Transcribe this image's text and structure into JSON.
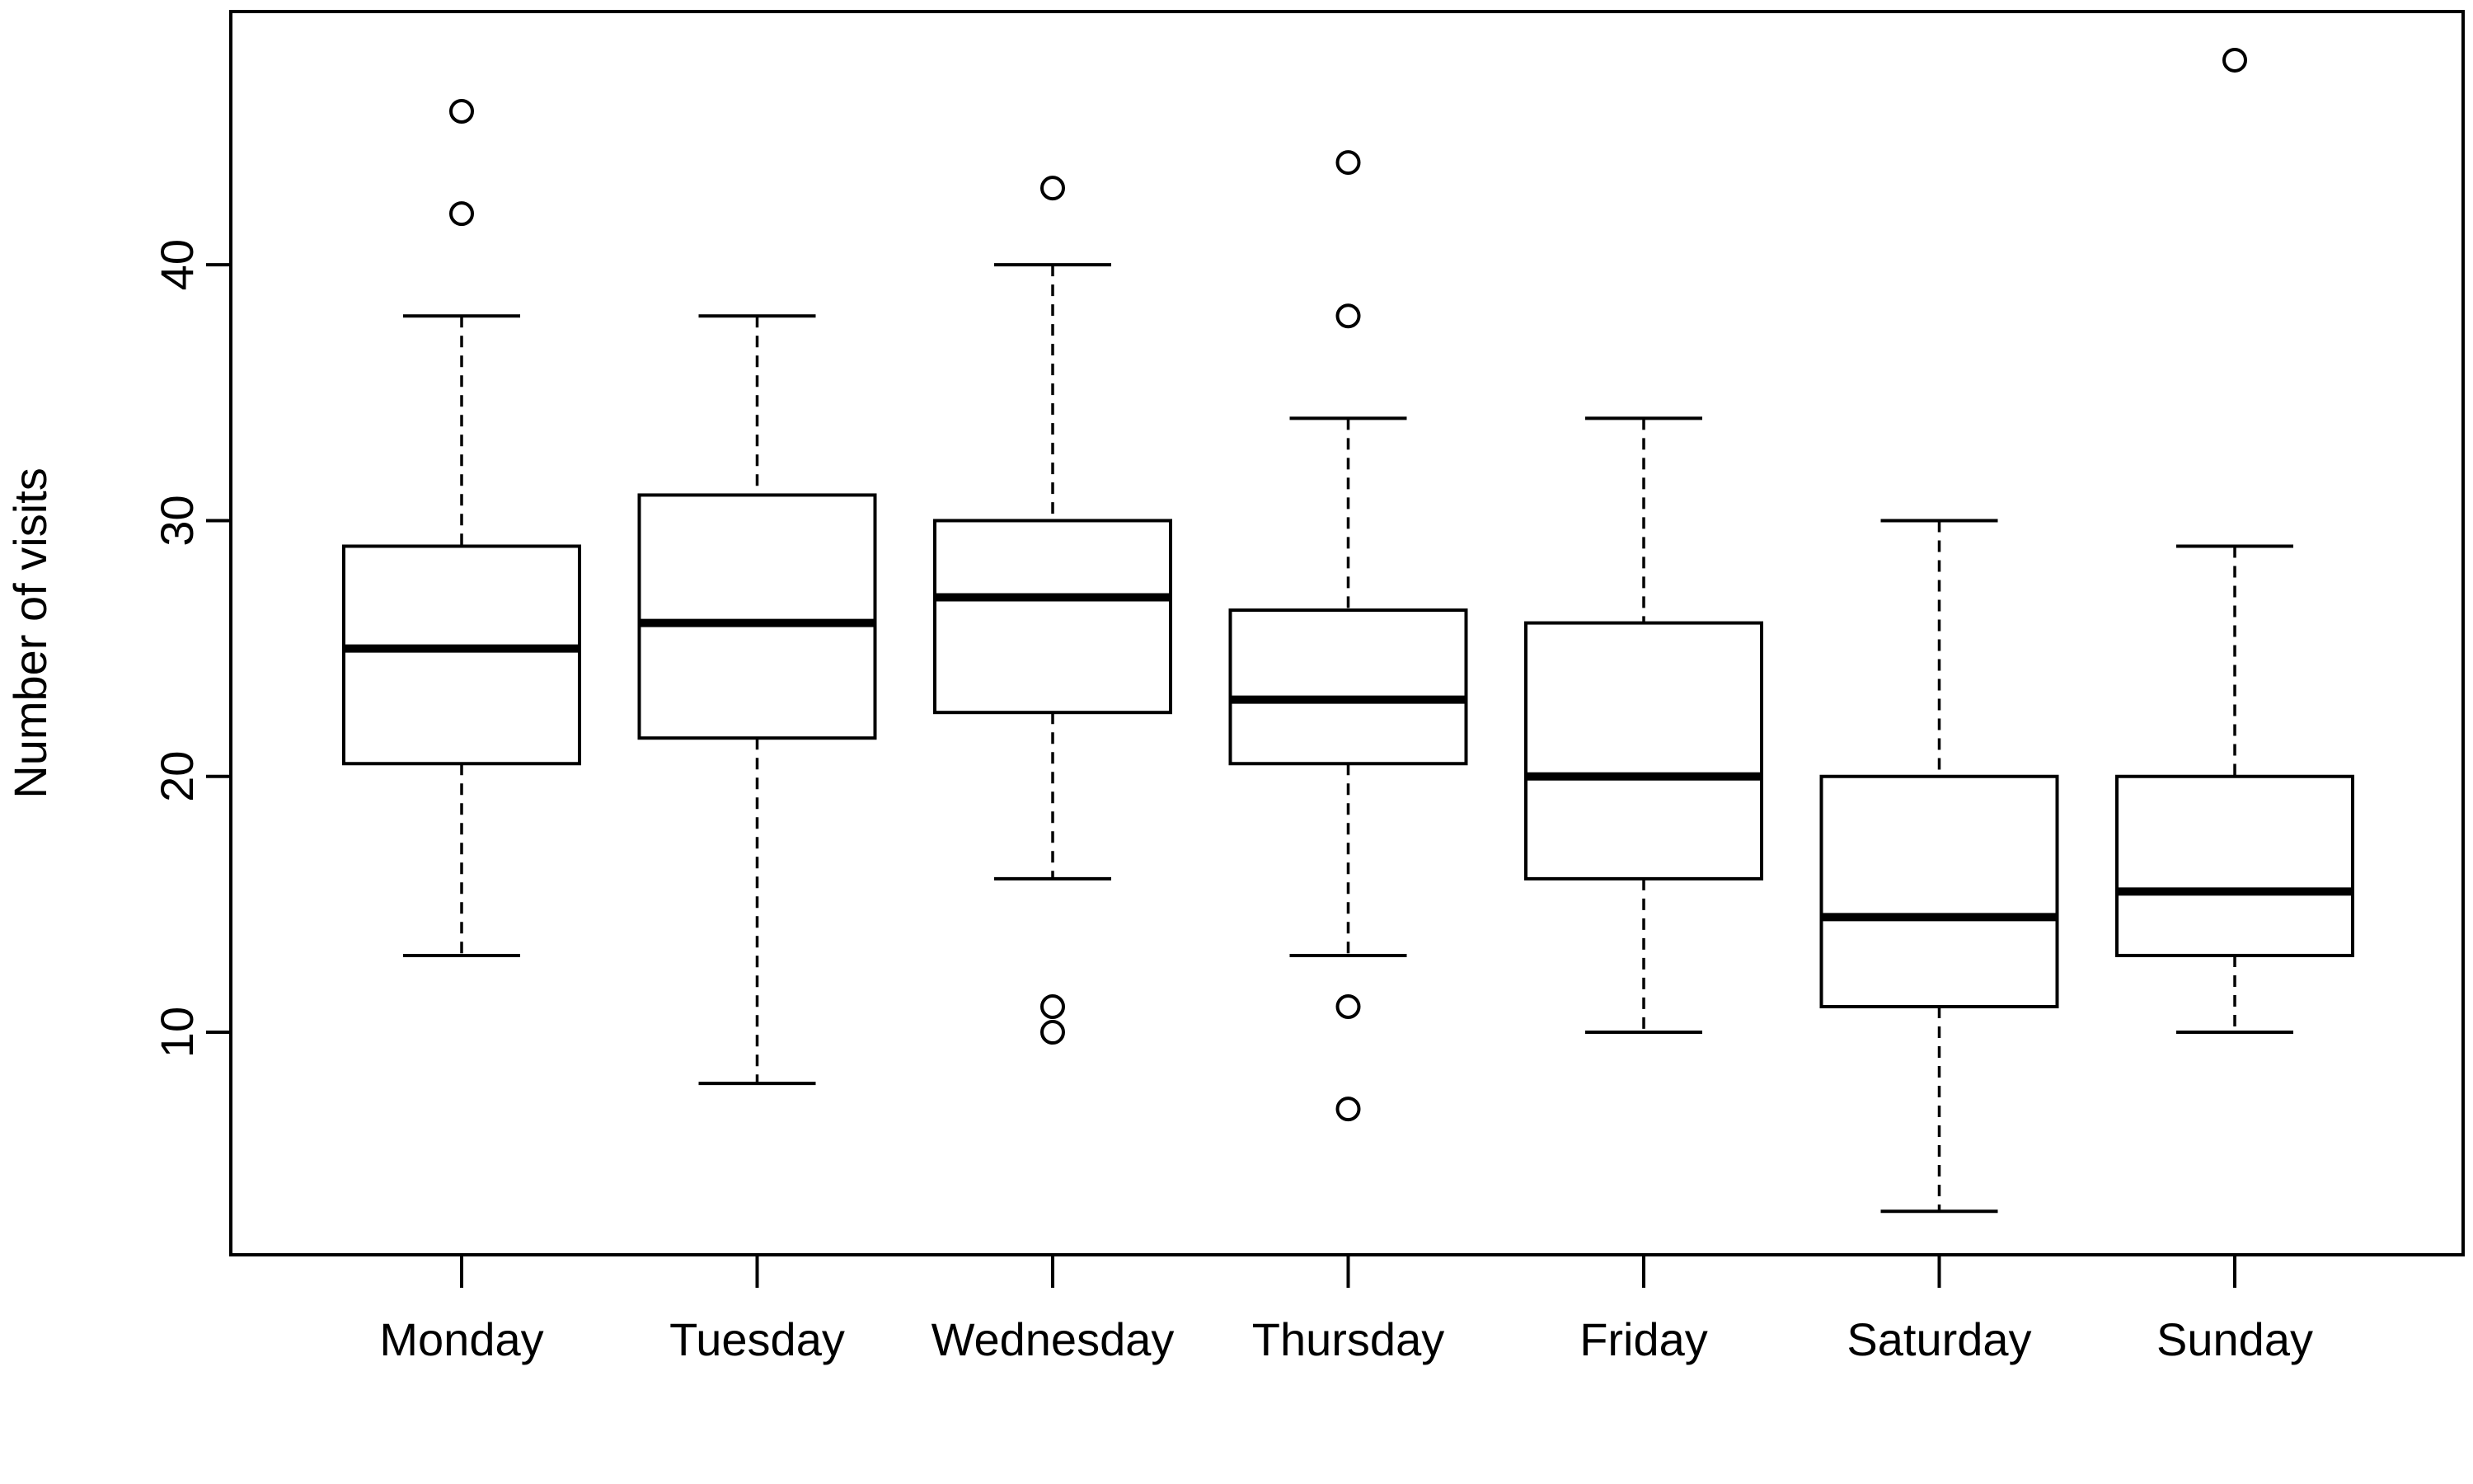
{
  "chart_data": {
    "type": "boxplot",
    "title": "",
    "xlabel": "",
    "ylabel": "Number of visits",
    "ylim": [
      1.3,
      49.9
    ],
    "yticks": [
      10,
      20,
      30,
      40
    ],
    "grid": false,
    "legend": "none",
    "colors": {
      "stroke": "#000000",
      "fill": "#ffffff"
    },
    "categories": [
      "Monday",
      "Tuesday",
      "Wednesday",
      "Thursday",
      "Friday",
      "Saturday",
      "Sunday"
    ],
    "boxes": [
      {
        "category": "Monday",
        "whisker_low": 13,
        "q1": 20.5,
        "median": 25,
        "q3": 29,
        "whisker_high": 38,
        "outliers": [
          42,
          46
        ]
      },
      {
        "category": "Tuesday",
        "whisker_low": 8,
        "q1": 21.5,
        "median": 26,
        "q3": 31,
        "whisker_high": 38,
        "outliers": []
      },
      {
        "category": "Wednesday",
        "whisker_low": 16,
        "q1": 22.5,
        "median": 27,
        "q3": 30,
        "whisker_high": 40,
        "outliers": [
          10,
          11,
          43
        ]
      },
      {
        "category": "Thursday",
        "whisker_low": 13,
        "q1": 20.5,
        "median": 23,
        "q3": 26.5,
        "whisker_high": 34,
        "outliers": [
          7,
          11,
          38,
          44
        ]
      },
      {
        "category": "Friday",
        "whisker_low": 10,
        "q1": 16,
        "median": 20,
        "q3": 26,
        "whisker_high": 34,
        "outliers": []
      },
      {
        "category": "Saturday",
        "whisker_low": 3,
        "q1": 11,
        "median": 14.5,
        "q3": 20,
        "whisker_high": 30,
        "outliers": []
      },
      {
        "category": "Sunday",
        "whisker_low": 10,
        "q1": 13,
        "median": 15.5,
        "q3": 20,
        "whisker_high": 29,
        "outliers": [
          48
        ]
      }
    ]
  }
}
